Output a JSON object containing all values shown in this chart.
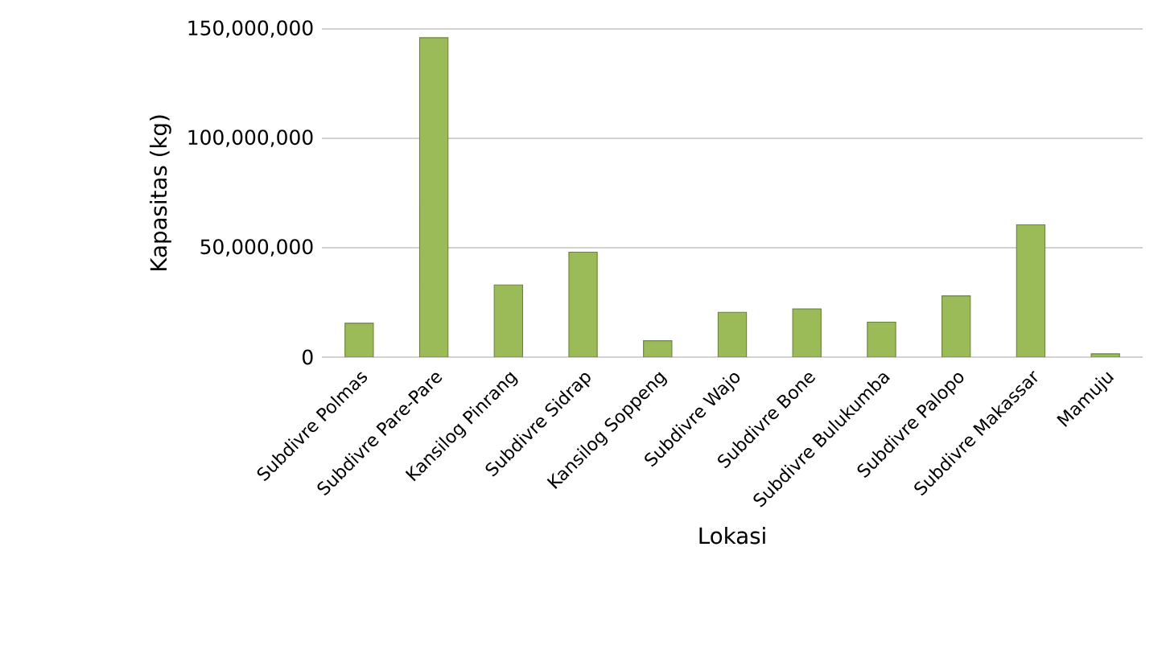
{
  "chart_data": {
    "type": "bar",
    "xlabel": "Lokasi",
    "ylabel": "Kapasitas (kg)",
    "categories": [
      "Subdivre Polmas",
      "Subdivre Pare-Pare",
      "Kansilog Pinrang",
      "Subdivre Sidrap",
      "Kansilog Soppeng",
      "Subdivre Wajo",
      "Subdivre Bone",
      "Subdivre Bulukumba",
      "Subdivre Palopo",
      "Subdivre Makassar",
      "Mamuju"
    ],
    "values": [
      15500000,
      146000000,
      33000000,
      48000000,
      7500000,
      20500000,
      22000000,
      16000000,
      28000000,
      60500000,
      1500000
    ],
    "color": "#9bbb59",
    "ylim": [
      0,
      150000000
    ],
    "yticks": [
      {
        "value": 0,
        "label": "0"
      },
      {
        "value": 50000000,
        "label": "50,000,000"
      },
      {
        "value": 100000000,
        "label": "100,000,000"
      },
      {
        "value": 150000000,
        "label": "150,000,000"
      }
    ],
    "grid": "y"
  }
}
